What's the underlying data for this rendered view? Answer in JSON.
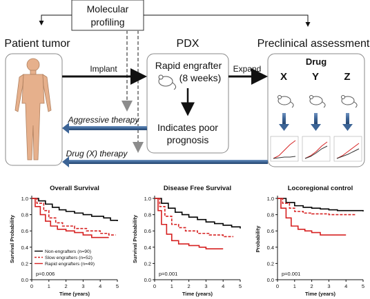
{
  "flow": {
    "molecular_profiling": [
      "Molecular",
      "profiling"
    ],
    "patient_tumor": "Patient tumor",
    "pdx": "PDX",
    "preclinical_assessment": "Preclinical assessment",
    "implant": "Implant",
    "expand": "Expand",
    "rapid_engrafter": "Rapid engrafter",
    "weeks": "(8 weeks)",
    "indicates": [
      "Indicates poor",
      "prognosis"
    ],
    "drug": "Drug",
    "drugs": [
      "X",
      "Y",
      "Z"
    ],
    "aggressive_therapy": "Aggressive therapy",
    "drug_x_therapy": "Drug (X) therapy"
  },
  "colors": {
    "arrow_dark": "#111111",
    "arrow_blue": "#3c6496",
    "dashed_gray": "#8c8c8c",
    "body_fill": "#e6b08c",
    "non_engrafters": "#000000",
    "slow_engrafters": "#d62020",
    "rapid_engrafters": "#d62020"
  },
  "chart_data": [
    {
      "type": "line",
      "title": "Overall Survival",
      "ylabel": "Survival Probability",
      "xlabel": "Time (years)",
      "xlim": [
        0,
        5
      ],
      "ylim": [
        0,
        1.0
      ],
      "xticks": [
        "0",
        "1",
        "2",
        "3",
        "4",
        "5"
      ],
      "yticks": [
        "0.0",
        "0.2",
        "0.4",
        "0.6",
        "0.8",
        "1.0"
      ],
      "pvalue": "p=0.006",
      "legend": [
        "Non-engrafters (n=90)",
        "Slow engrafters (n=52)",
        "Rapid engrafters (n=49)"
      ],
      "series": [
        {
          "name": "Non-engrafters (n=90)",
          "style": "solid-black",
          "points": [
            [
              0,
              1.0
            ],
            [
              0.4,
              0.97
            ],
            [
              0.8,
              0.93
            ],
            [
              1.2,
              0.89
            ],
            [
              1.6,
              0.86
            ],
            [
              2.0,
              0.84
            ],
            [
              2.5,
              0.82
            ],
            [
              3.0,
              0.8
            ],
            [
              3.5,
              0.78
            ],
            [
              4.2,
              0.76
            ],
            [
              4.6,
              0.73
            ],
            [
              5.0,
              0.72
            ]
          ]
        },
        {
          "name": "Slow engrafters (n=52)",
          "style": "dashed-red",
          "points": [
            [
              0,
              1.0
            ],
            [
              0.3,
              0.94
            ],
            [
              0.7,
              0.85
            ],
            [
              1.0,
              0.76
            ],
            [
              1.4,
              0.7
            ],
            [
              1.8,
              0.66
            ],
            [
              2.5,
              0.63
            ],
            [
              3.2,
              0.6
            ],
            [
              4.0,
              0.57
            ],
            [
              4.5,
              0.55
            ],
            [
              4.9,
              0.55
            ]
          ]
        },
        {
          "name": "Rapid engrafters (n=49)",
          "style": "solid-red",
          "points": [
            [
              0,
              1.0
            ],
            [
              0.2,
              0.9
            ],
            [
              0.5,
              0.8
            ],
            [
              0.8,
              0.72
            ],
            [
              1.1,
              0.66
            ],
            [
              1.5,
              0.62
            ],
            [
              2.0,
              0.6
            ],
            [
              2.5,
              0.58
            ],
            [
              3.0,
              0.55
            ],
            [
              3.5,
              0.52
            ],
            [
              4.5,
              0.52
            ]
          ]
        }
      ]
    },
    {
      "type": "line",
      "title": "Disease Free Survival",
      "ylabel": "Survival Probability",
      "xlabel": "Time (years)",
      "xlim": [
        0,
        5
      ],
      "ylim": [
        0,
        1.0
      ],
      "xticks": [
        "0",
        "1",
        "2",
        "3",
        "4",
        "5"
      ],
      "yticks": [
        "0.0",
        "0.2",
        "0.4",
        "0.6",
        "0.8",
        "1.0"
      ],
      "pvalue": "p=0.001",
      "series": [
        {
          "style": "solid-black",
          "points": [
            [
              0,
              1.0
            ],
            [
              0.4,
              0.94
            ],
            [
              0.8,
              0.88
            ],
            [
              1.2,
              0.83
            ],
            [
              1.6,
              0.8
            ],
            [
              2.0,
              0.77
            ],
            [
              2.5,
              0.74
            ],
            [
              3.0,
              0.71
            ],
            [
              3.5,
              0.69
            ],
            [
              4.0,
              0.67
            ],
            [
              4.5,
              0.65
            ],
            [
              5.0,
              0.63
            ]
          ]
        },
        {
          "style": "dashed-red",
          "points": [
            [
              0,
              1.0
            ],
            [
              0.3,
              0.9
            ],
            [
              0.6,
              0.78
            ],
            [
              1.0,
              0.68
            ],
            [
              1.4,
              0.64
            ],
            [
              1.8,
              0.6
            ],
            [
              2.5,
              0.57
            ],
            [
              3.2,
              0.55
            ],
            [
              4.0,
              0.53
            ],
            [
              4.6,
              0.53
            ]
          ]
        },
        {
          "style": "solid-red",
          "points": [
            [
              0,
              1.0
            ],
            [
              0.2,
              0.85
            ],
            [
              0.4,
              0.68
            ],
            [
              0.7,
              0.56
            ],
            [
              1.0,
              0.48
            ],
            [
              1.4,
              0.44
            ],
            [
              2.0,
              0.42
            ],
            [
              2.6,
              0.4
            ],
            [
              3.0,
              0.38
            ],
            [
              4.0,
              0.38
            ]
          ]
        }
      ]
    },
    {
      "type": "line",
      "title": "Locoregional control",
      "ylabel": "Probability",
      "xlabel": "Time (years)",
      "xlim": [
        0,
        5
      ],
      "ylim": [
        0,
        1.0
      ],
      "xticks": [
        "0",
        "1",
        "2",
        "3",
        "4",
        "5"
      ],
      "yticks": [
        "0.0",
        "0.2",
        "0.4",
        "0.6",
        "0.8",
        "1.0"
      ],
      "pvalue": "p=0.001",
      "series": [
        {
          "style": "solid-black",
          "points": [
            [
              0,
              1.0
            ],
            [
              0.5,
              0.95
            ],
            [
              1.0,
              0.91
            ],
            [
              1.5,
              0.89
            ],
            [
              2.0,
              0.88
            ],
            [
              2.5,
              0.87
            ],
            [
              3.0,
              0.86
            ],
            [
              3.5,
              0.85
            ],
            [
              4.0,
              0.85
            ],
            [
              5.0,
              0.84
            ]
          ]
        },
        {
          "style": "dashed-red",
          "points": [
            [
              0,
              1.0
            ],
            [
              0.3,
              0.94
            ],
            [
              0.7,
              0.88
            ],
            [
              1.0,
              0.84
            ],
            [
              1.5,
              0.82
            ],
            [
              2.0,
              0.81
            ],
            [
              3.0,
              0.8
            ],
            [
              4.0,
              0.8
            ],
            [
              4.6,
              0.8
            ]
          ]
        },
        {
          "style": "solid-red",
          "points": [
            [
              0,
              1.0
            ],
            [
              0.2,
              0.88
            ],
            [
              0.5,
              0.76
            ],
            [
              0.8,
              0.66
            ],
            [
              1.2,
              0.62
            ],
            [
              1.6,
              0.6
            ],
            [
              2.0,
              0.58
            ],
            [
              2.5,
              0.55
            ],
            [
              4.0,
              0.55
            ]
          ]
        }
      ]
    }
  ]
}
